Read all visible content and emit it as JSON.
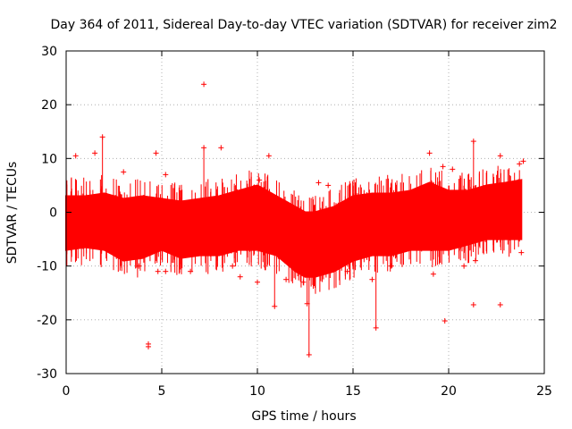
{
  "chart_data": {
    "type": "scatter",
    "title": "Day 364 of 2011, Sidereal Day-to-day VTEC variation (SDTVAR) for receiver zim2",
    "xlabel": "GPS time / hours",
    "ylabel": "SDTVAR / TECUs",
    "xlim": [
      0,
      25
    ],
    "ylim": [
      -30,
      30
    ],
    "xticks": [
      0,
      5,
      10,
      15,
      20,
      25
    ],
    "yticks": [
      -30,
      -20,
      -10,
      0,
      10,
      20,
      30
    ],
    "xtick_labels": [
      "0",
      "5",
      "10",
      "15",
      "20",
      "25"
    ],
    "ytick_labels": [
      "-30",
      "-20",
      "-10",
      "0",
      "10",
      "20",
      "30"
    ],
    "grid": true,
    "marker": "+",
    "series_color": "#ff0000",
    "band": {
      "description": "dense cloud of points, approximate upper/lower envelope per hour",
      "x": [
        0,
        1,
        2,
        3,
        4,
        5,
        6,
        7,
        8,
        9,
        10,
        11,
        12,
        12.5,
        13,
        14,
        15,
        16,
        17,
        18,
        19,
        20,
        21,
        22,
        23,
        23.8
      ],
      "upper": [
        3,
        3,
        3.5,
        2.5,
        3,
        2.5,
        2,
        2.5,
        3,
        4,
        5,
        3,
        1,
        0,
        0,
        1,
        3,
        3.5,
        3.5,
        4,
        5.5,
        4,
        4,
        5,
        5.5,
        6
      ],
      "lower": [
        -7,
        -6.5,
        -7,
        -9,
        -8.5,
        -7,
        -8.5,
        -8,
        -8,
        -7,
        -7,
        -8,
        -11,
        -12,
        -12,
        -11,
        -9,
        -8,
        -8,
        -7,
        -7,
        -7,
        -6,
        -5,
        -5,
        -5
      ]
    },
    "outliers": [
      {
        "x": 7.2,
        "y": 23.8
      },
      {
        "x": 4.3,
        "y": -24.5
      },
      {
        "x": 4.3,
        "y": -25
      },
      {
        "x": 12.7,
        "y": -26.5
      },
      {
        "x": 19.8,
        "y": -20.2
      },
      {
        "x": 16.2,
        "y": -21.5
      },
      {
        "x": 10.9,
        "y": -17.5
      },
      {
        "x": 21.3,
        "y": -17.2
      },
      {
        "x": 22.7,
        "y": -17.2
      },
      {
        "x": 1.9,
        "y": 14
      },
      {
        "x": 21.3,
        "y": 13.2
      },
      {
        "x": 7.2,
        "y": 12
      },
      {
        "x": 8.1,
        "y": 12
      },
      {
        "x": 4.7,
        "y": 11
      },
      {
        "x": 1.5,
        "y": 11
      },
      {
        "x": 0.5,
        "y": 10.5
      },
      {
        "x": 10.6,
        "y": 10.5
      },
      {
        "x": 19,
        "y": 11
      },
      {
        "x": 22.7,
        "y": 10.5
      },
      {
        "x": 23.7,
        "y": 9
      },
      {
        "x": 23.9,
        "y": 9.5
      },
      {
        "x": 19.7,
        "y": 8.5
      },
      {
        "x": 20.2,
        "y": 8
      },
      {
        "x": 3,
        "y": 7.5
      },
      {
        "x": 5.2,
        "y": 7
      },
      {
        "x": 13.2,
        "y": 5.5
      },
      {
        "x": 13.7,
        "y": 5
      },
      {
        "x": 10.1,
        "y": 6
      },
      {
        "x": 12.6,
        "y": -17
      },
      {
        "x": 12.4,
        "y": -13
      },
      {
        "x": 10,
        "y": -13
      },
      {
        "x": 11.5,
        "y": -12.5
      },
      {
        "x": 9.1,
        "y": -12
      },
      {
        "x": 4.8,
        "y": -11
      },
      {
        "x": 5.2,
        "y": -11
      },
      {
        "x": 3.8,
        "y": -10
      },
      {
        "x": 6.5,
        "y": -11
      },
      {
        "x": 17,
        "y": -10
      },
      {
        "x": 19.2,
        "y": -11.5
      },
      {
        "x": 20.8,
        "y": -10
      },
      {
        "x": 21.4,
        "y": -9
      },
      {
        "x": 23.8,
        "y": -7.5
      },
      {
        "x": 16,
        "y": -12.5
      },
      {
        "x": 14.7,
        "y": -11
      },
      {
        "x": 8.7,
        "y": -10
      }
    ]
  }
}
